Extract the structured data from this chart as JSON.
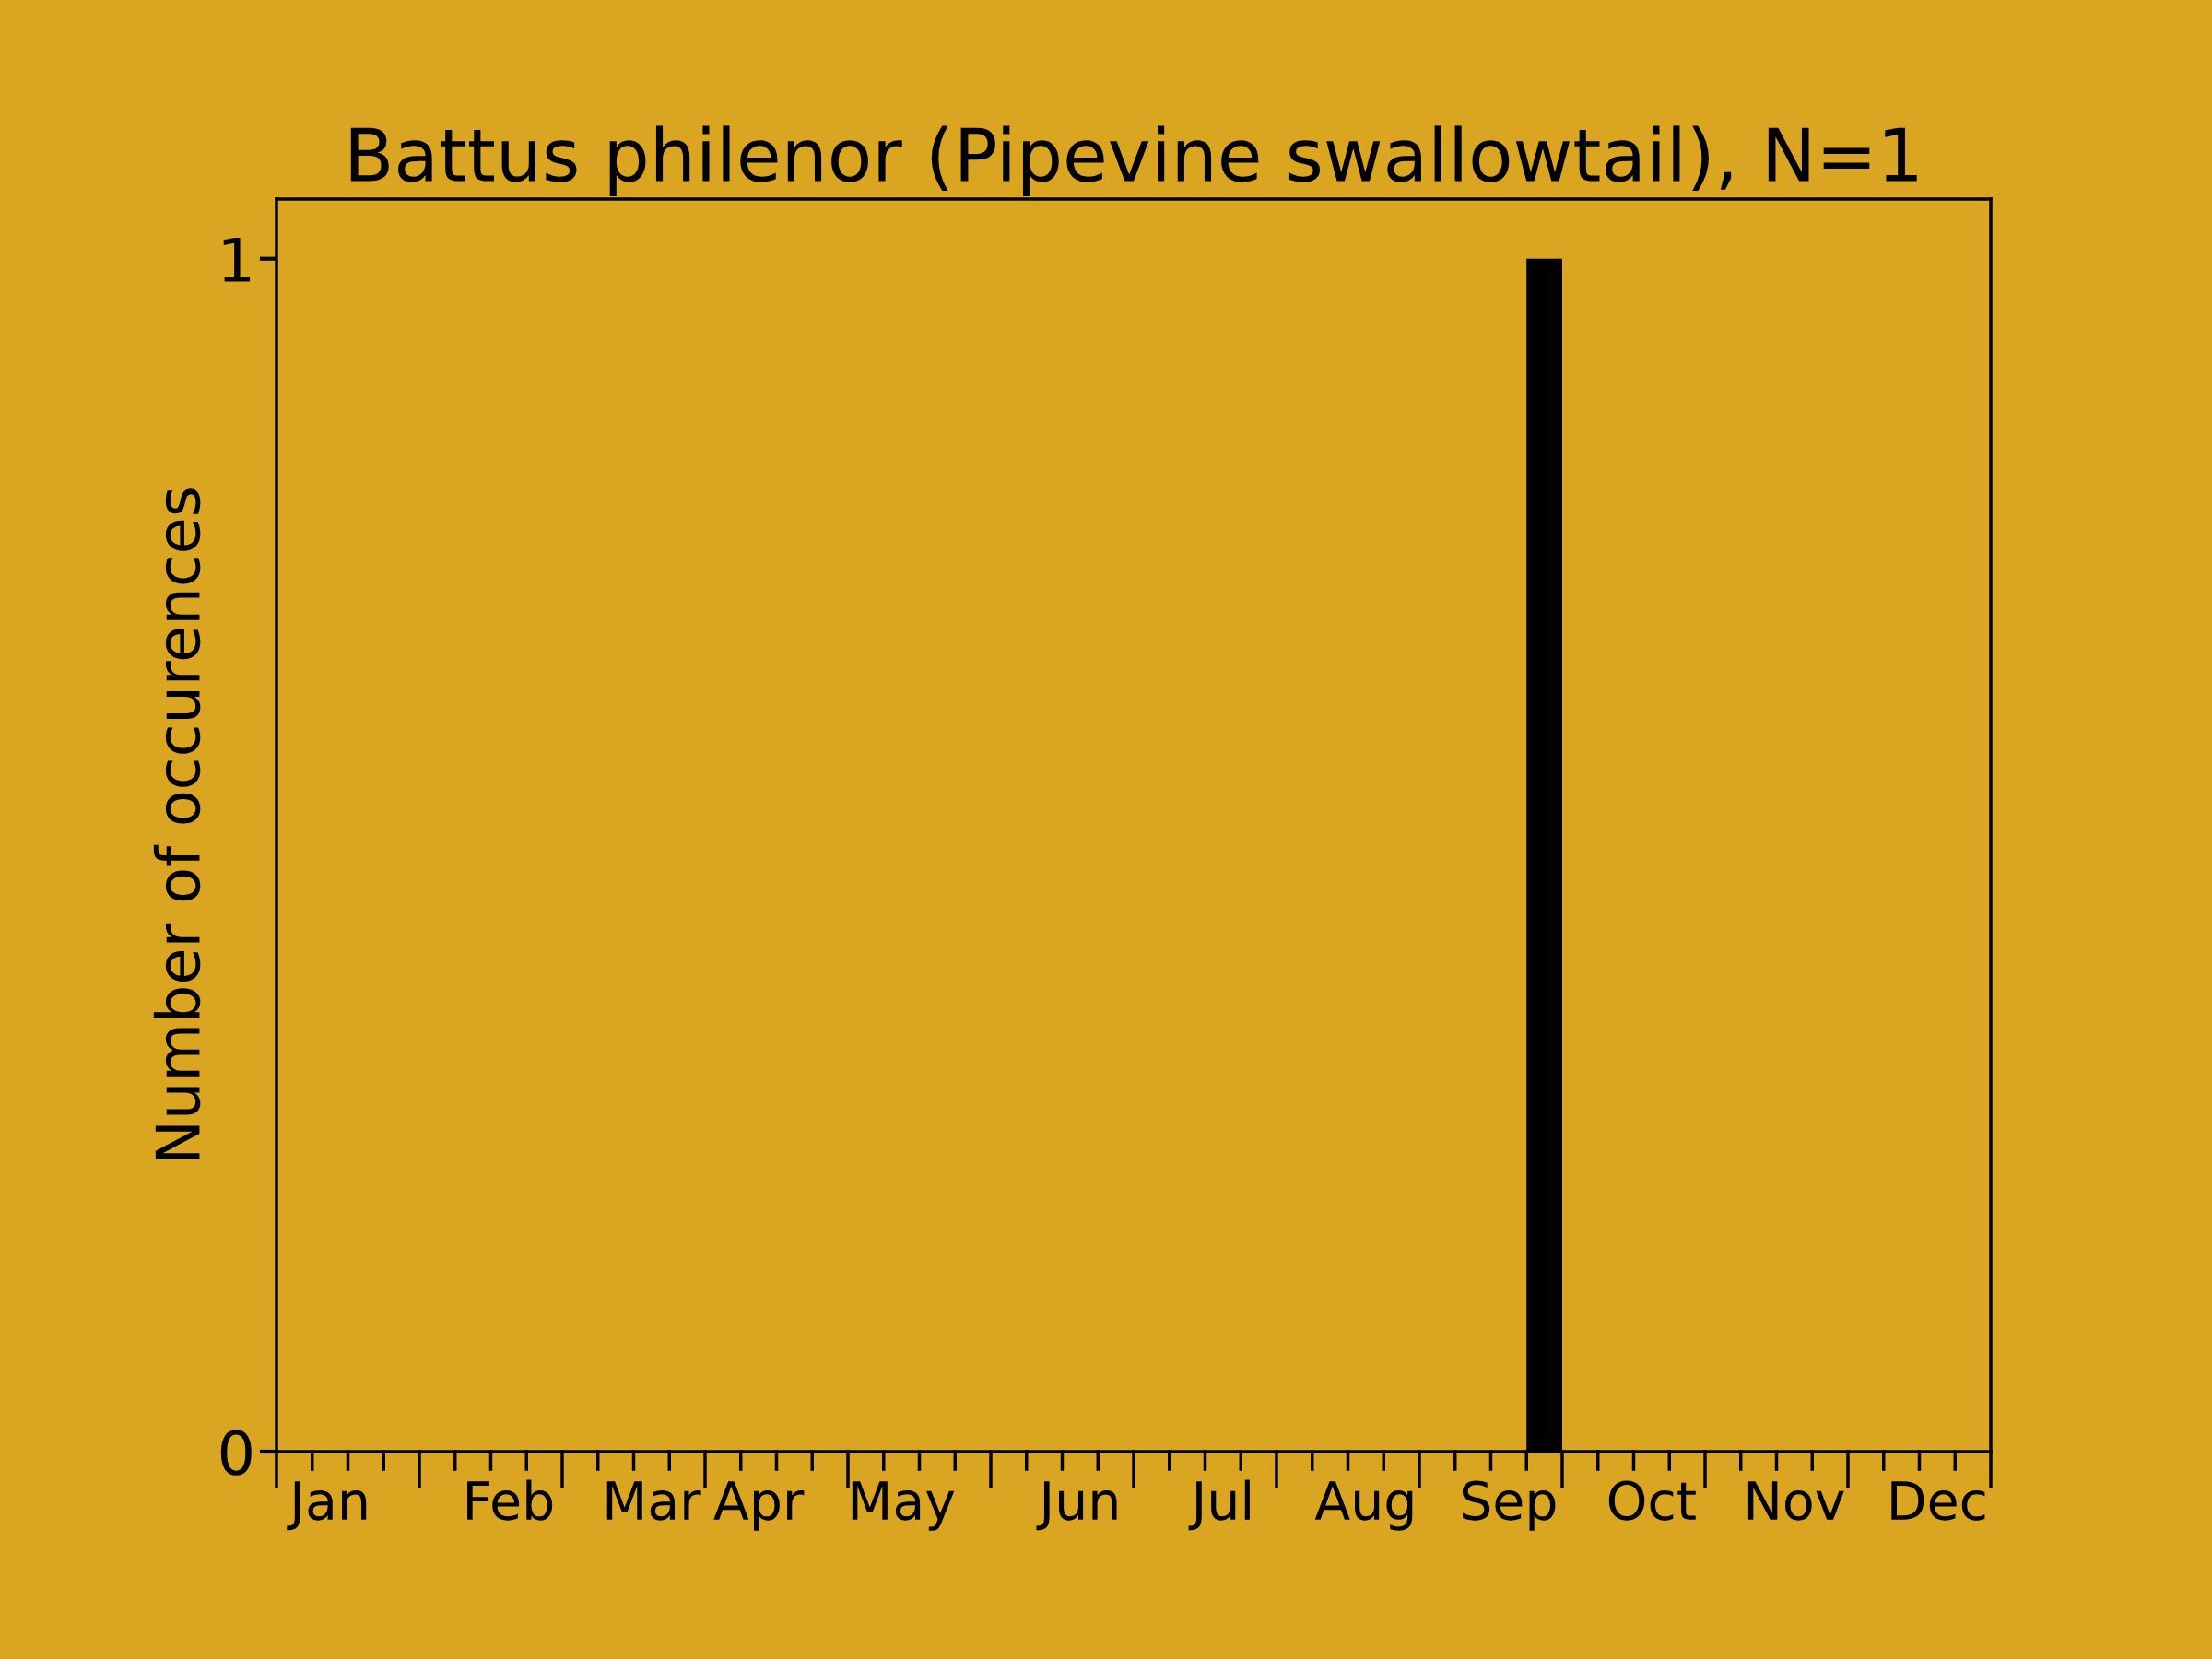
{
  "chart_data": {
    "type": "bar",
    "title": "Battus philenor (Pipevine swallowtail), N=1",
    "ylabel": "Number of occurences",
    "categories": [
      null,
      "Jan",
      null,
      null,
      null,
      null,
      "Feb",
      null,
      null,
      null,
      "Mar",
      null,
      null,
      "Apr",
      null,
      null,
      null,
      "May",
      null,
      null,
      null,
      null,
      "Jun",
      null,
      null,
      null,
      "Jul",
      null,
      null,
      null,
      "Aug",
      null,
      null,
      null,
      "Sep",
      null,
      null,
      null,
      "Oct",
      null,
      null,
      null,
      "Nov",
      null,
      null,
      null,
      "Dec",
      null
    ],
    "values": [
      0,
      0,
      0,
      0,
      0,
      0,
      0,
      0,
      0,
      0,
      0,
      0,
      0,
      0,
      0,
      0,
      0,
      0,
      0,
      0,
      0,
      0,
      0,
      0,
      0,
      0,
      0,
      0,
      0,
      0,
      0,
      0,
      0,
      0,
      0,
      1,
      0,
      0,
      0,
      0,
      0,
      0,
      0,
      0,
      0,
      0,
      0,
      0
    ],
    "color": "#000000",
    "ylim": [
      0,
      1.05
    ],
    "yticks": [
      0,
      1
    ]
  }
}
